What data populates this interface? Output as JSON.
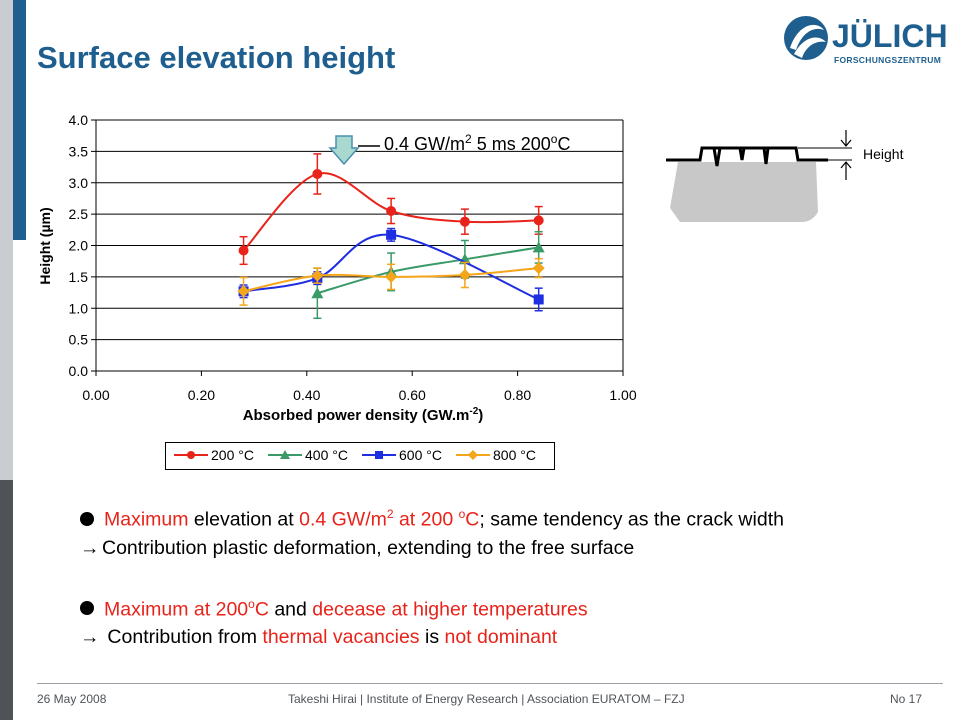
{
  "slide": {
    "title": "Surface elevation height",
    "logo_name": "JÜLICH",
    "logo_sub": "FORSCHUNGSZENTRUM",
    "logo_icon": "julich-logo-icon"
  },
  "annotation": {
    "prefix": "0.4 GW/m",
    "sup1": "2",
    "middle": " 5 ms 200",
    "sup2": "o",
    "suffix": "C",
    "arrow_icon": "down-arrow-icon"
  },
  "schematic": {
    "label": "Height"
  },
  "chart_data": {
    "type": "line",
    "title": "",
    "xlabel": "Absorbed power density (GW.m",
    "xlabel_sup": "-2",
    "xlabel_tail": ")",
    "ylabel": "Height (µm)",
    "xlim": [
      0.0,
      1.0
    ],
    "ylim": [
      0.0,
      4.0
    ],
    "x_ticks": [
      "0.00",
      "0.20",
      "0.40",
      "0.60",
      "0.80",
      "1.00"
    ],
    "y_ticks": [
      "0.0",
      "0.5",
      "1.0",
      "1.5",
      "2.0",
      "2.5",
      "3.0",
      "3.5",
      "4.0"
    ],
    "grid": "horizontal",
    "legend_position": "bottom",
    "series": [
      {
        "name": "200 °C",
        "color": "#e8231a",
        "marker": "circle",
        "x": [
          0.28,
          0.42,
          0.56,
          0.7,
          0.84
        ],
        "y": [
          1.92,
          3.14,
          2.55,
          2.38,
          2.4
        ],
        "err": [
          0.22,
          0.32,
          0.2,
          0.2,
          0.22
        ]
      },
      {
        "name": "400 °C",
        "color": "#3a9a68",
        "marker": "triangle",
        "x": [
          0.42,
          0.56,
          0.7,
          0.84
        ],
        "y": [
          1.24,
          1.58,
          1.78,
          1.97
        ],
        "err": [
          0.4,
          0.3,
          0.3,
          0.25
        ]
      },
      {
        "name": "600 °C",
        "color": "#1f2ee0",
        "marker": "square",
        "x": [
          0.28,
          0.42,
          0.56,
          0.84
        ],
        "y": [
          1.27,
          1.48,
          2.17,
          1.14
        ],
        "err": [
          0.1,
          0.1,
          0.1,
          0.18
        ]
      },
      {
        "name": "800 °C",
        "color": "#f5a51a",
        "marker": "diamond",
        "x": [
          0.28,
          0.42,
          0.56,
          0.7,
          0.84
        ],
        "y": [
          1.27,
          1.52,
          1.5,
          1.53,
          1.64
        ],
        "err": [
          0.22,
          0.12,
          0.2,
          0.2,
          0.15
        ]
      }
    ]
  },
  "bullets": {
    "b1_red1": "Maximum",
    "b1_t1": " elevation at ",
    "b1_red2": "0.4 GW/m",
    "b1_sup1": "2",
    "b1_red3": " at 200 ",
    "b1_sup2": "o",
    "b1_red4": "C",
    "b1_t2": "; same tendency as the crack width",
    "b2_arrow": "→",
    "b2_text": "Contribution plastic deformation, extending to the free surface",
    "b3_red1": "Maximum at 200",
    "b3_sup": "o",
    "b3_red2": "C",
    "b3_t1": " and ",
    "b3_red3": "decease at higher temperatures",
    "b4_arrow": "→",
    "b4_t1": " Contribution from ",
    "b4_red1": "thermal vacancies",
    "b4_t2": " is ",
    "b4_red2": "not dominant"
  },
  "footer": {
    "date": "26 May 2008",
    "center": "Takeshi Hirai | Institute of Energy Research | Association EURATOM – FZJ",
    "page": "No 17"
  }
}
